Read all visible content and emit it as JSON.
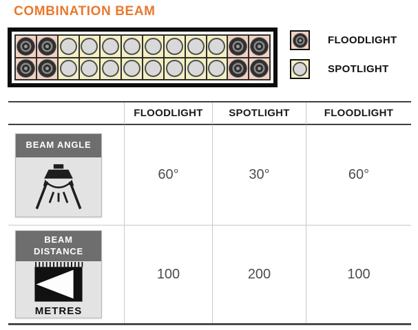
{
  "title": "COMBINATION BEAM",
  "colors": {
    "accent_orange": "#E8792E",
    "flood_bg": "#F2D1C2",
    "spot_bg": "#F4F0C2",
    "band_gray": "#6E6E6E",
    "line_dark": "#3E3E3E",
    "grid_light": "#C9C9C9"
  },
  "lightbar": {
    "rows": 2,
    "columns": 12,
    "pattern": [
      "flood",
      "flood",
      "spot",
      "spot",
      "spot",
      "spot",
      "spot",
      "spot",
      "spot",
      "spot",
      "flood",
      "flood"
    ]
  },
  "legend": {
    "items": [
      {
        "type": "flood",
        "icon": "floodlight-lens-icon",
        "label": "FLOODLIGHT"
      },
      {
        "type": "spot",
        "icon": "spotlight-lens-icon",
        "label": "SPOTLIGHT"
      }
    ]
  },
  "table": {
    "columns": [
      "FLOODLIGHT",
      "SPOTLIGHT",
      "FLOODLIGHT"
    ],
    "rows": [
      {
        "label": "BEAM ANGLE",
        "icon": "beam-angle-lamp-icon",
        "values": [
          "60°",
          "30°",
          "60°"
        ]
      },
      {
        "label": "BEAM DISTANCE",
        "icon": "beam-distance-arrow-icon",
        "unit": "METRES",
        "values": [
          "100",
          "200",
          "100"
        ]
      }
    ]
  }
}
